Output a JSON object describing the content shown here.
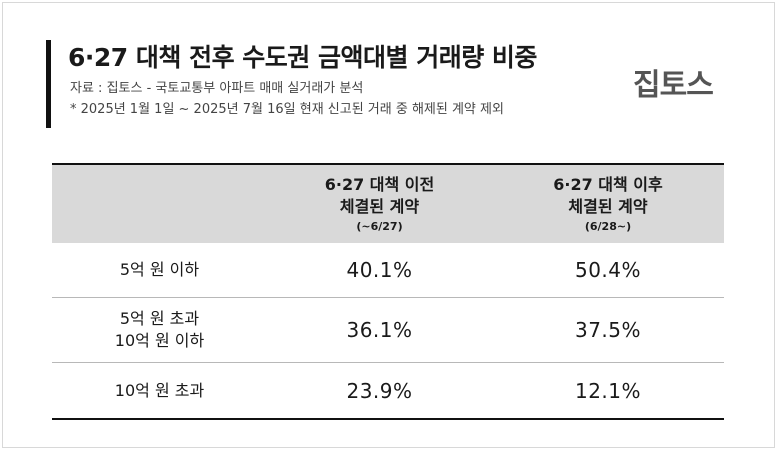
{
  "header": {
    "title": "6·27 대책 전후 수도권 금액대별 거래량 비중",
    "source_note": "자료 : 집토스 - 국토교통부 아파트 매매 실거래가 분석",
    "footnote": "* 2025년 1월 1일 ~ 2025년 7월 16일 현재 신고된 거래 중 해제된 계약 제외",
    "logo_text": "집토스"
  },
  "table": {
    "columns": [
      {
        "line1": "",
        "line2": "",
        "range": ""
      },
      {
        "line1": "6·27 대책 이전",
        "line2": "체결된 계약",
        "range": "(~6/27)"
      },
      {
        "line1": "6·27 대책 이후",
        "line2": "체결된 계약",
        "range": "(6/28~)"
      }
    ],
    "rows": [
      {
        "label_lines": [
          "5억 원 이하"
        ],
        "before": "40.1%",
        "after": "50.4%"
      },
      {
        "label_lines": [
          "5억 원 초과",
          "10억 원 이하"
        ],
        "before": "36.1%",
        "after": "37.5%"
      },
      {
        "label_lines": [
          "10억 원 초과"
        ],
        "before": "23.9%",
        "after": "12.1%"
      }
    ]
  },
  "colors": {
    "header_bg": "#d9d9d9",
    "rule_dark": "#111111",
    "logo": "#555555"
  }
}
